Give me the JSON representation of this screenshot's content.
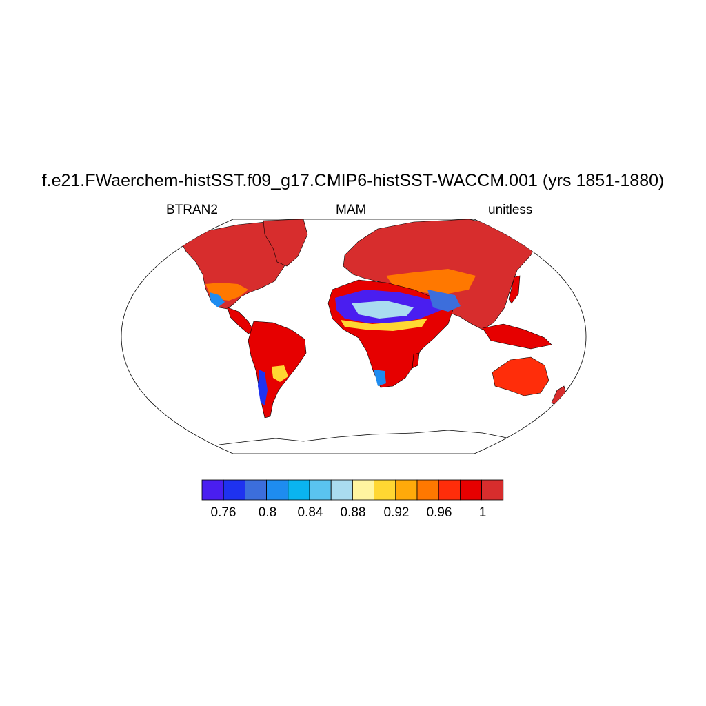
{
  "title": "f.e21.FWaerchem-histSST.f09_g17.CMIP6-histSST-WACCM.001 (yrs 1851-1880)",
  "subtitle": {
    "left": "BTRAN2",
    "center": "MAM",
    "right": "unitless"
  },
  "colors": {
    "ocean": "#ffffff",
    "coastline": "#000000",
    "colorbar": [
      "#4a1ef0",
      "#1e32f0",
      "#3c6edc",
      "#1e8cf0",
      "#0ab4f0",
      "#5ac3f0",
      "#aadcf0",
      "#fff5a0",
      "#ffd732",
      "#ffaa0a",
      "#ff7800",
      "#ff2d0a",
      "#e60000",
      "#d72d2d"
    ]
  },
  "colorbar": {
    "ticks": [
      "0.76",
      "0.8",
      "0.84",
      "0.88",
      "0.92",
      "0.96",
      "1"
    ]
  }
}
